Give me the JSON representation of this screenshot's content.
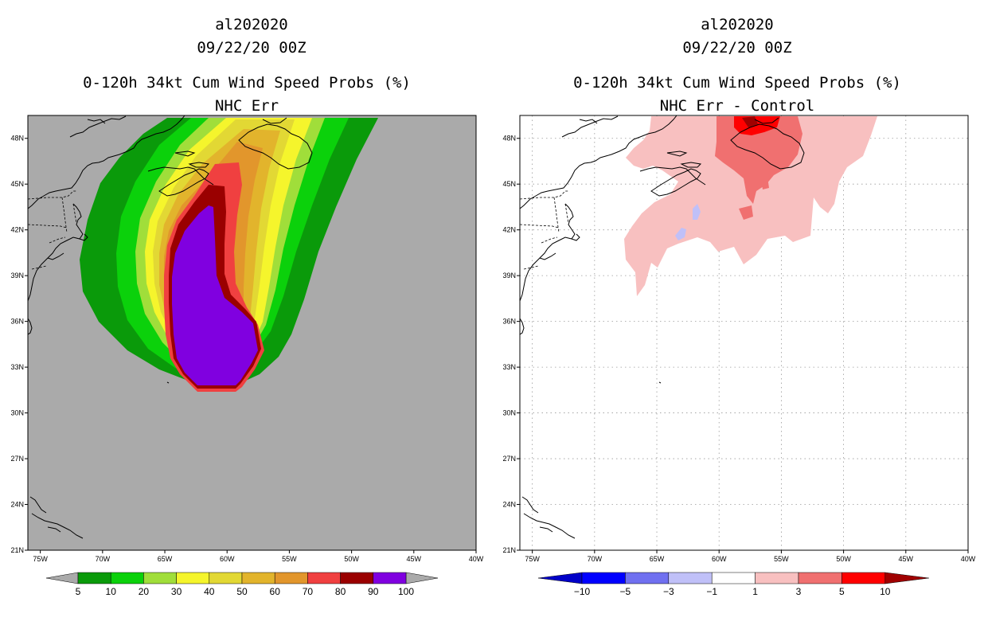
{
  "colors": {
    "land_grey": "#aaaaaa",
    "c5": "#0a9a0a",
    "c10": "#0bd10b",
    "c20": "#a0de3a",
    "c30": "#f5f52c",
    "c40": "#e2d834",
    "c50": "#e2b42c",
    "c60": "#e2962c",
    "c70": "#ef8820",
    "c80": "#f04040",
    "c90": "#9a0000",
    "c100": "#8000e0",
    "d_neg10": "#0000c8",
    "d_neg5": "#0000ff",
    "d_neg3": "#7070f0",
    "d_neg1": "#c0c0f8",
    "d_zero": "#ffffff",
    "d_1": "#f8c0c0",
    "d_3": "#f07070",
    "d_5": "#ff0000",
    "d_10": "#a00000"
  },
  "chart_data": [
    {
      "type": "heatmap",
      "title_lines": [
        "al202020",
        "09/22/20 00Z",
        "0-120h 34kt Cum Wind Speed Probs (%)",
        "NHC Err"
      ],
      "x_ticks": [
        "75W",
        "70W",
        "65W",
        "60W",
        "55W",
        "50W",
        "45W",
        "40W"
      ],
      "y_ticks": [
        "21N",
        "24N",
        "27N",
        "30N",
        "33N",
        "36N",
        "39N",
        "42N",
        "45N",
        "48N"
      ],
      "lon_range": [
        -76,
        -40
      ],
      "lat_range": [
        21,
        49.5
      ],
      "colorbar": {
        "labels": [
          "5",
          "10",
          "20",
          "30",
          "40",
          "50",
          "60",
          "70",
          "80",
          "90",
          "100"
        ],
        "colors": [
          "#0a9a0a",
          "#0bd10b",
          "#a0de3a",
          "#f5f52c",
          "#e2d834",
          "#e2b42c",
          "#e2962c",
          "#f04040",
          "#9a0000",
          "#8000e0"
        ]
      },
      "grid": false
    },
    {
      "type": "heatmap",
      "title_lines": [
        "al202020",
        "09/22/20 00Z",
        "0-120h 34kt Cum Wind Speed Probs (%)",
        "NHC Err - Control"
      ],
      "x_ticks": [
        "75W",
        "70W",
        "65W",
        "60W",
        "55W",
        "50W",
        "45W",
        "40W"
      ],
      "y_ticks": [
        "21N",
        "24N",
        "27N",
        "30N",
        "33N",
        "36N",
        "39N",
        "42N",
        "45N",
        "48N"
      ],
      "lon_range": [
        -76,
        -40
      ],
      "lat_range": [
        21,
        49.5
      ],
      "colorbar": {
        "labels": [
          "-10",
          "-5",
          "-3",
          "-1",
          "1",
          "3",
          "5",
          "10"
        ],
        "colors": [
          "#0000c8",
          "#0000ff",
          "#7070f0",
          "#c0c0f8",
          "#ffffff",
          "#f8c0c0",
          "#f07070",
          "#ff0000",
          "#a00000"
        ]
      },
      "grid": true
    }
  ]
}
